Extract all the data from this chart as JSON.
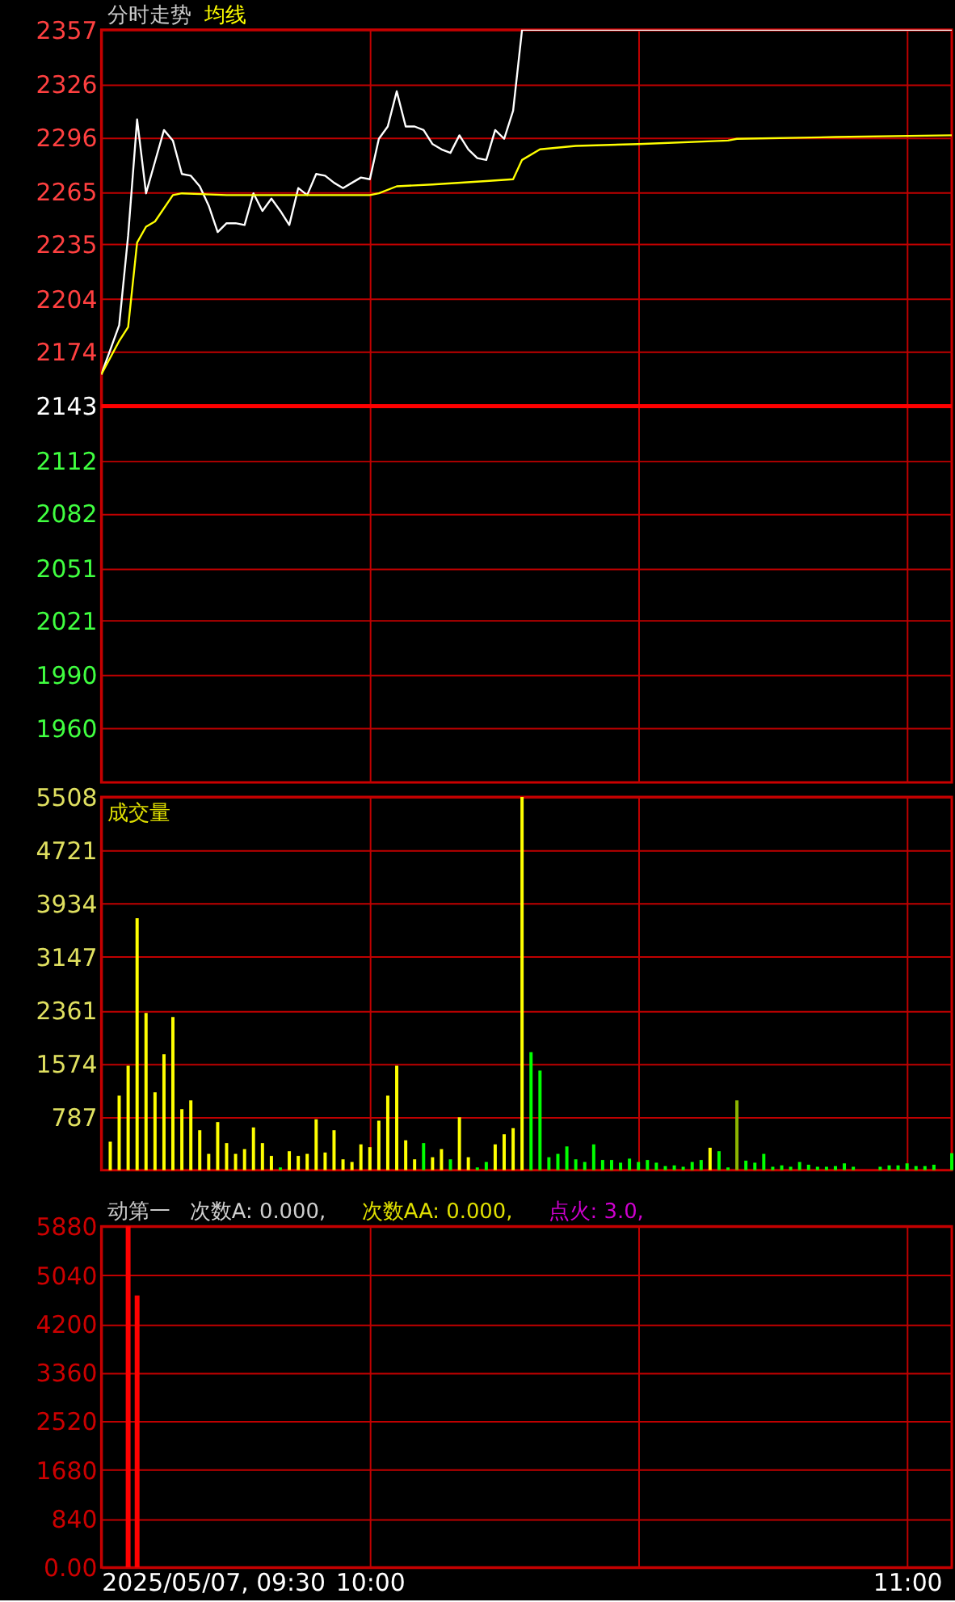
{
  "chart_data": [
    {
      "type": "line",
      "title": "分时走势",
      "grid": true,
      "tick_labels": "y",
      "xlim": [
        9.5,
        11.0833
      ],
      "xticks": [
        {
          "value": 9.5,
          "label": null
        },
        {
          "value": 10,
          "label": null
        },
        {
          "value": 10.5,
          "label": null
        },
        {
          "value": 11,
          "label": null
        }
      ],
      "ylim": [
        1929,
        2357
      ],
      "yticks": [
        1960,
        1990,
        2021,
        2051,
        2082,
        2112,
        2143,
        2174,
        2204,
        2235,
        2265,
        2296,
        2326,
        2357
      ],
      "ref_lines": [
        {
          "axis": "y",
          "value": 2143,
          "color": "#ff0000"
        }
      ],
      "series": [
        {
          "color": "#ffffff",
          "x": [
            9.5,
            9.5167,
            9.5333,
            9.55,
            9.5667,
            9.5833,
            9.6,
            9.6167,
            9.6333,
            9.65,
            9.6667,
            9.6833,
            9.7,
            9.7167,
            9.7333,
            9.75,
            9.7667,
            9.7833,
            9.8,
            9.8167,
            9.8333,
            9.85,
            9.8667,
            9.8833,
            9.9,
            9.9167,
            9.9333,
            9.95,
            9.9667,
            9.9833,
            10,
            10.0167,
            10.0333,
            10.05,
            10.0667,
            10.0833,
            10.1,
            10.1167,
            10.1333,
            10.15,
            10.1667,
            10.1833,
            10.2,
            10.2167,
            10.2333,
            10.25,
            10.2667,
            10.2833,
            11.0833
          ],
          "values": [
            2161,
            2175,
            2189,
            2240,
            2306,
            2264,
            2282,
            2300,
            2294,
            2275,
            2274,
            2268,
            2257,
            2242,
            2247,
            2247,
            2246,
            2264,
            2254,
            2261,
            2254,
            2246,
            2267,
            2263,
            2275,
            2274,
            2270,
            2267,
            2270,
            2273,
            2272,
            2295,
            2302,
            2322,
            2302,
            2302,
            2300,
            2292,
            2289,
            2287,
            2297,
            2289,
            2284,
            2283,
            2300,
            2295,
            2311,
            2357,
            2357
          ]
        },
        {
          "name": "均线",
          "color": "#ffff00",
          "x": [
            9.5,
            9.5333,
            9.55,
            9.5667,
            9.5833,
            9.6,
            9.6333,
            9.65,
            9.7333,
            9.85,
            10,
            10.0167,
            10.05,
            10.1167,
            10.2167,
            10.2667,
            10.2833,
            10.3167,
            10.3833,
            10.5,
            10.6667,
            10.6833,
            10.8667,
            11.0833
          ],
          "values": [
            2161,
            2180,
            2188,
            2236,
            2245,
            2248,
            2263,
            2264,
            2263,
            2263,
            2263,
            2264,
            2268,
            2269,
            2271,
            2272,
            2283,
            2289,
            2291,
            2292,
            2294,
            2295,
            2296,
            2297
          ]
        }
      ]
    },
    {
      "type": "bar",
      "title": "成交量",
      "grid": true,
      "tick_labels": "y",
      "xlim": [
        9.5,
        11.0833
      ],
      "xticks": [
        {
          "value": 9.5,
          "label": null
        },
        {
          "value": 10,
          "label": null
        },
        {
          "value": 10.5,
          "label": null
        },
        {
          "value": 11,
          "label": null
        }
      ],
      "ylim": [
        0,
        5508
      ],
      "yticks": [
        787,
        1574,
        2361,
        3147,
        3934,
        4721,
        5508
      ],
      "x": [
        9.5167,
        9.5333,
        9.55,
        9.5667,
        9.5833,
        9.6,
        9.6167,
        9.6333,
        9.65,
        9.6667,
        9.6833,
        9.7,
        9.7167,
        9.7333,
        9.75,
        9.7667,
        9.7833,
        9.8,
        9.8167,
        9.8333,
        9.85,
        9.8667,
        9.8833,
        9.9,
        9.9167,
        9.9333,
        9.95,
        9.9667,
        9.9833,
        10,
        10.0167,
        10.0333,
        10.05,
        10.0667,
        10.0833,
        10.1,
        10.1167,
        10.1333,
        10.15,
        10.1667,
        10.1833,
        10.2,
        10.2167,
        10.2333,
        10.25,
        10.2667,
        10.2833,
        10.3,
        10.3167,
        10.3333,
        10.35,
        10.3667,
        10.3833,
        10.4,
        10.4167,
        10.4333,
        10.45,
        10.4667,
        10.4833,
        10.5,
        10.5167,
        10.5333,
        10.55,
        10.5667,
        10.5833,
        10.6,
        10.6167,
        10.6333,
        10.65,
        10.6667,
        10.6833,
        10.7,
        10.7167,
        10.7333,
        10.75,
        10.7667,
        10.7833,
        10.8,
        10.8167,
        10.8333,
        10.85,
        10.8667,
        10.8833,
        10.9,
        10.95,
        10.9667,
        10.9833,
        11,
        11.0167,
        11.0333,
        11.05,
        11.0833
      ],
      "values": [
        420,
        1100,
        1540,
        3720,
        2320,
        1150,
        1710,
        2260,
        900,
        1030,
        590,
        240,
        710,
        400,
        240,
        310,
        630,
        400,
        210,
        40,
        280,
        210,
        240,
        750,
        260,
        590,
        160,
        120,
        380,
        340,
        730,
        1100,
        1540,
        440,
        160,
        400,
        190,
        310,
        160,
        780,
        190,
        40,
        120,
        380,
        530,
        620,
        5508,
        1740,
        1470,
        190,
        240,
        350,
        160,
        120,
        380,
        150,
        150,
        110,
        170,
        120,
        150,
        110,
        60,
        70,
        50,
        120,
        150,
        330,
        280,
        40,
        1030,
        140,
        110,
        240,
        50,
        70,
        50,
        120,
        80,
        50,
        50,
        60,
        100,
        50,
        50,
        70,
        70,
        100,
        60,
        60,
        80,
        250
      ],
      "colors": [
        "#ffff00",
        "#ffff00",
        "#ffff00",
        "#ffff00",
        "#ffff00",
        "#ffff00",
        "#ffff00",
        "#ffff00",
        "#ffff00",
        "#ffff00",
        "#ffff00",
        "#ffff00",
        "#ffff00",
        "#ffff00",
        "#ffff00",
        "#ffff00",
        "#ffff00",
        "#ffff00",
        "#ffff00",
        "#00ff00",
        "#ffff00",
        "#ffff00",
        "#ffff00",
        "#ffff00",
        "#ffff00",
        "#ffff00",
        "#ffff00",
        "#ffff00",
        "#ffff00",
        "#ffff00",
        "#ffff00",
        "#ffff00",
        "#ffff00",
        "#ffff00",
        "#ffff00",
        "#00ff00",
        "#ffff00",
        "#ffff00",
        "#00ff00",
        "#ffff00",
        "#ffff00",
        "#00ff00",
        "#00ff00",
        "#ffff00",
        "#ffff00",
        "#ffff00",
        "#ffff00",
        "#00ff00",
        "#00ff00",
        "#00ff00",
        "#00ff00",
        "#00ff00",
        "#00ff00",
        "#00ff00",
        "#00ff00",
        "#00ff00",
        "#00ff00",
        "#00ff00",
        "#00ff00",
        "#00ff00",
        "#00ff00",
        "#00ff00",
        "#00ff00",
        "#00ff00",
        "#00ff00",
        "#00ff00",
        "#00ff00",
        "#ffff00",
        "#00ff00",
        "#00ff00",
        "#8db500",
        "#00ff00",
        "#00ff00",
        "#00ff00",
        "#00ff00",
        "#00ff00",
        "#00ff00",
        "#00ff00",
        "#00ff00",
        "#00ff00",
        "#00ff00",
        "#00ff00",
        "#00ff00",
        "#00ff00",
        "#00ff00",
        "#00ff00",
        "#00ff00",
        "#00ff00",
        "#00ff00",
        "#00ff00",
        "#00ff00",
        "#00ff00"
      ]
    },
    {
      "type": "bar",
      "title": "动第一",
      "grid": true,
      "annotations": [
        "次数A: 0.000,",
        "次数AA: 0.000,",
        "点火: 3.0,"
      ],
      "xlim": [
        9.5,
        11.0833
      ],
      "xticks": [
        {
          "value": 9.5,
          "label": "2025/05/07, 09:30"
        },
        {
          "value": 10,
          "label": "10:00"
        },
        {
          "value": 10.5,
          "label": null
        },
        {
          "value": 11,
          "label": "11:00"
        }
      ],
      "ylim": [
        0,
        5880
      ],
      "yticks": [
        {
          "value": 0,
          "label": "0.00"
        },
        840,
        1680,
        2520,
        3360,
        4200,
        5040,
        5880
      ],
      "x": [
        9.55,
        9.5667
      ],
      "values": [
        5880,
        4690
      ],
      "color": "#ff0000"
    }
  ]
}
